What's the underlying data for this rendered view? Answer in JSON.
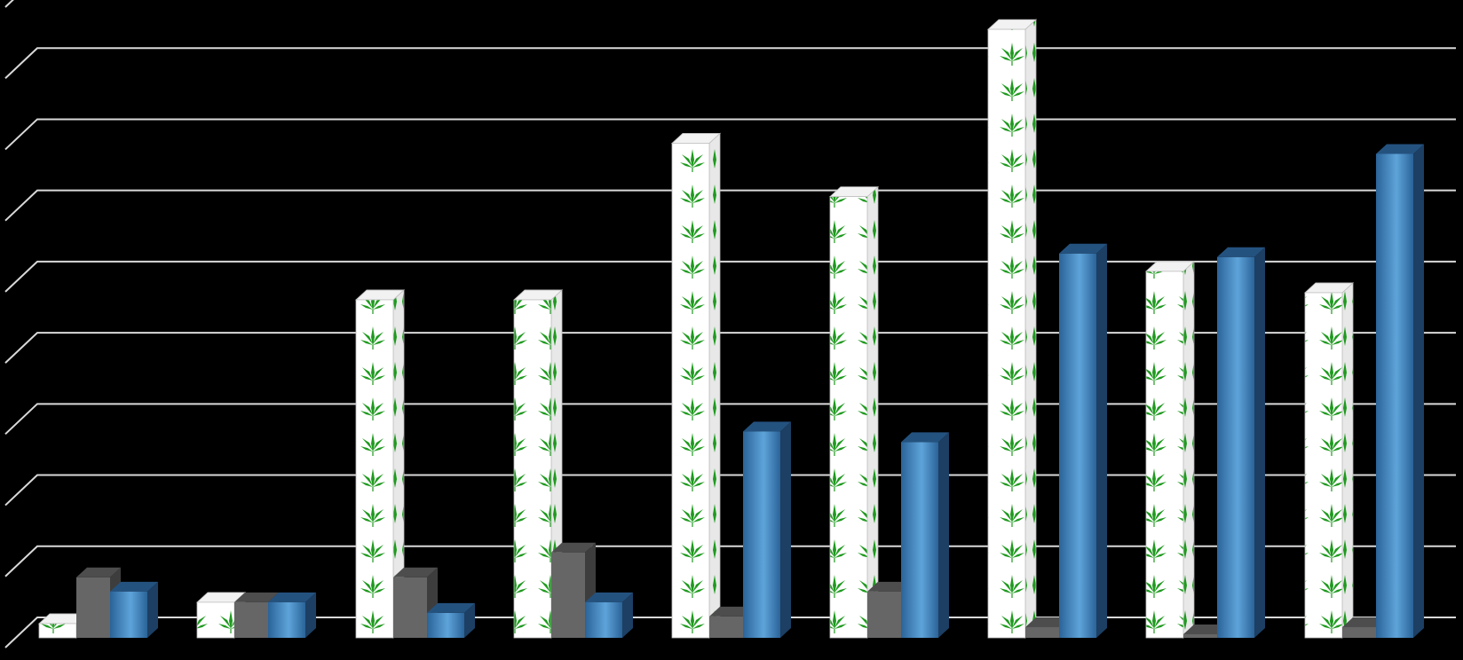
{
  "chart_data": {
    "type": "bar",
    "title": "",
    "xlabel": "",
    "ylabel": "",
    "grid": true,
    "ylim": [
      0,
      9
    ],
    "categories": [
      "",
      "",
      "",
      "",
      "",
      "",
      "",
      "",
      ""
    ],
    "series": [
      {
        "values": [
          0.2,
          0.5,
          4.75,
          4.75,
          6.95,
          6.2,
          8.55,
          5.15,
          4.85
        ]
      },
      {
        "values": [
          0.85,
          0.5,
          0.85,
          1.2,
          0.3,
          0.65,
          0.15,
          0.05,
          0.15
        ]
      },
      {
        "values": [
          0.65,
          0.5,
          0.35,
          0.5,
          2.9,
          2.75,
          5.4,
          5.35,
          6.8
        ]
      }
    ],
    "colors": {
      "background": "#000000",
      "grid": "#d9d9d9",
      "series_gray": "#666666",
      "series_blue": "#2f6fa6",
      "leaf": "#1f9a1f"
    }
  }
}
